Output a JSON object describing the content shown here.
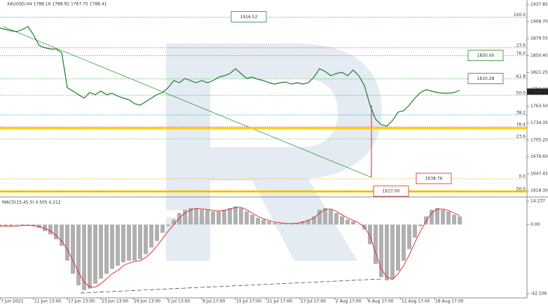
{
  "chart_data": [
    {
      "type": "line",
      "title": "XAUUSD,H4 1788.16 1788.92 1767.75 1788.41",
      "color": "#1b7a2a",
      "values": [
        1897.7,
        1895.3,
        1892.9,
        1891.7,
        1895.3,
        1900.2,
        1885.7,
        1867.6,
        1864.0,
        1861.6,
        1861.6,
        1855.6,
        1795.4,
        1789.3,
        1783.3,
        1777.3,
        1786.9,
        1783.3,
        1789.3,
        1783.3,
        1785.7,
        1780.9,
        1777.3,
        1774.9,
        1767.7,
        1765.2,
        1771.3,
        1777.3,
        1783.3,
        1786.9,
        1795.4,
        1807.4,
        1803.8,
        1811.0,
        1807.4,
        1803.8,
        1807.4,
        1803.8,
        1807.4,
        1813.4,
        1815.8,
        1819.5,
        1827.9,
        1819.5,
        1811.0,
        1813.4,
        1809.8,
        1807.4,
        1803.8,
        1801.4,
        1803.8,
        1805.0,
        1801.4,
        1803.8,
        1801.4,
        1803.8,
        1813.4,
        1827.9,
        1823.1,
        1815.8,
        1819.5,
        1821.9,
        1815.8,
        1825.5,
        1815.8,
        1799.0,
        1765.2,
        1741.2,
        1731.5,
        1729.1,
        1738.8,
        1753.2,
        1755.6,
        1765.2,
        1777.3,
        1786.9,
        1791.7,
        1789.3,
        1786.9,
        1785.7,
        1785.7,
        1786.9,
        1790.5
      ],
      "xlim": [
        0,
        94
      ],
      "xticks": [
        {
          "value": 0,
          "label": "7 Jun 2021"
        },
        {
          "value": 6,
          "label": "11 Jun 13:00"
        },
        {
          "value": 12,
          "label": "17 Jun 13:00"
        },
        {
          "value": 18,
          "label": "23 Jun 13:00"
        },
        {
          "value": 23.75,
          "label": "29 Jun 13:00"
        },
        {
          "value": 29.75,
          "label": "5 Jul 13:00"
        },
        {
          "value": 36,
          "label": "9 Jul 17:00"
        },
        {
          "value": 42,
          "label": "15 Jul 17:00"
        },
        {
          "value": 47.5,
          "label": "21 Jul 17:00"
        },
        {
          "value": 53.5,
          "label": "27 Jul 17:00"
        },
        {
          "value": 59.75,
          "label": "2 Aug 17:00"
        },
        {
          "value": 65.5,
          "label": "6 Aug 17:00"
        },
        {
          "value": 71.5,
          "label": "12 Aug 17:00"
        },
        {
          "value": 77.5,
          "label": "18 Aug 17:00"
        }
      ],
      "ylim": [
        1608.7,
        1945.9
      ],
      "yticks": [
        1937.85,
        {
          "value": 1908.7,
          "label": "1908.70"
        },
        1879.55,
        {
          "value": 1850.4,
          "label": "1850.40"
        },
        1821.25,
        {
          "value": 1792.1,
          "label": "1792.10"
        },
        {
          "value": 1763.5,
          "label": "1763.50"
        },
        1734.35,
        {
          "value": 1705.2,
          "label": "1705.20"
        },
        {
          "value": 1676.6,
          "label": "1676.60"
        },
        1647.45,
        {
          "value": 1618.3,
          "label": "1618.30"
        }
      ],
      "levels": [
        {
          "value": 1916.52,
          "label": "100.0",
          "color": "#2aa7a7"
        },
        {
          "value": 1864.0,
          "label": "23.6",
          "color": "#e05050"
        },
        {
          "value": 1850.0,
          "label": "76.0",
          "color": "#2aa7a7"
        },
        {
          "value": 1810.28,
          "label": "61.8",
          "color": "#4caf50"
        },
        {
          "value": 1782.1,
          "label": "50.0",
          "color": "#4caf50"
        },
        {
          "value": 1748.4,
          "label": "38.2",
          "color": "#2aa7a7"
        },
        {
          "value": 1727.9,
          "label": "76.4",
          "color": "#e05050"
        },
        {
          "value": 1707.4,
          "label": "23.6",
          "color": "#4caf50"
        },
        {
          "value": 1638.76,
          "label": "0.0",
          "color": "#e0a000"
        },
        {
          "value": 1617.0,
          "label": "50.0",
          "color": "#e05050"
        }
      ],
      "support_lines": [
        1725.5,
        1617.0
      ],
      "support_color": "#ffd000",
      "price_labels": [
        {
          "value": 1916.52,
          "label": "1916.52",
          "color": "#1b8a2a"
        },
        {
          "value": 1850.0,
          "label": "1850.00",
          "color": "#1b8a2a"
        },
        {
          "value": 1810.28,
          "label": "1810.28",
          "color": "#1b8a2a"
        },
        {
          "value": 1638.76,
          "label": "1638.76",
          "color": "#e02020"
        },
        {
          "value": 1617.0,
          "label": "1617.00",
          "color": "#e02020"
        }
      ],
      "last_price": 1788.41
    },
    {
      "type": "macd",
      "title": "MACD(15,45,5) 4.505 4.212",
      "histogram_color": "#b0b0b0",
      "signal_color": "#e02020",
      "histogram_values": [
        -1,
        -1,
        -1,
        -0.5,
        -0.5,
        -0.5,
        -1,
        -2,
        -4,
        -6,
        -9,
        -13,
        -22,
        -30,
        -37,
        -40,
        -39,
        -36,
        -33,
        -30,
        -27,
        -25,
        -23,
        -22,
        -22,
        -21,
        -18,
        -14,
        -10,
        -5,
        -1,
        3,
        7,
        9,
        10,
        10,
        9,
        9,
        8,
        8,
        9,
        10,
        11,
        10,
        8,
        6,
        4,
        3,
        2,
        1,
        0.5,
        0.5,
        0.5,
        1,
        2,
        3,
        5,
        9,
        10,
        9,
        7,
        5,
        3,
        2,
        0,
        -3,
        -12,
        -24,
        -32,
        -34,
        -33,
        -28,
        -22,
        -15,
        -8,
        -1,
        5,
        9,
        10,
        9,
        8,
        6,
        5
      ],
      "signal_values": [
        -1,
        -1,
        -1,
        -1,
        -0.5,
        -0.5,
        -0.7,
        -1.2,
        -2.5,
        -4,
        -6.5,
        -10,
        -15,
        -22,
        -29,
        -35,
        -38,
        -38,
        -36,
        -33,
        -30,
        -28,
        -25,
        -23.5,
        -22.5,
        -22,
        -20,
        -17,
        -13,
        -8.5,
        -4,
        0,
        4,
        7,
        9,
        9.8,
        9.5,
        9.2,
        8.6,
        8.2,
        8.5,
        9.4,
        10.4,
        10.5,
        9,
        7,
        5,
        3.5,
        2.5,
        1.5,
        1,
        0.7,
        0.6,
        0.8,
        1.5,
        2.5,
        4,
        7,
        9.2,
        9.5,
        8,
        6,
        4,
        2.5,
        1,
        -1.5,
        -7,
        -17,
        -27,
        -32,
        -33.5,
        -30,
        -25,
        -18.5,
        -11,
        -4,
        2,
        7,
        9.5,
        9.5,
        8.5,
        7,
        5.5
      ],
      "ylim": [
        -42.106,
        14.237
      ],
      "yticks": [
        14.237,
        {
          "value": 0,
          "label": "0.00"
        },
        -42.106
      ]
    }
  ]
}
